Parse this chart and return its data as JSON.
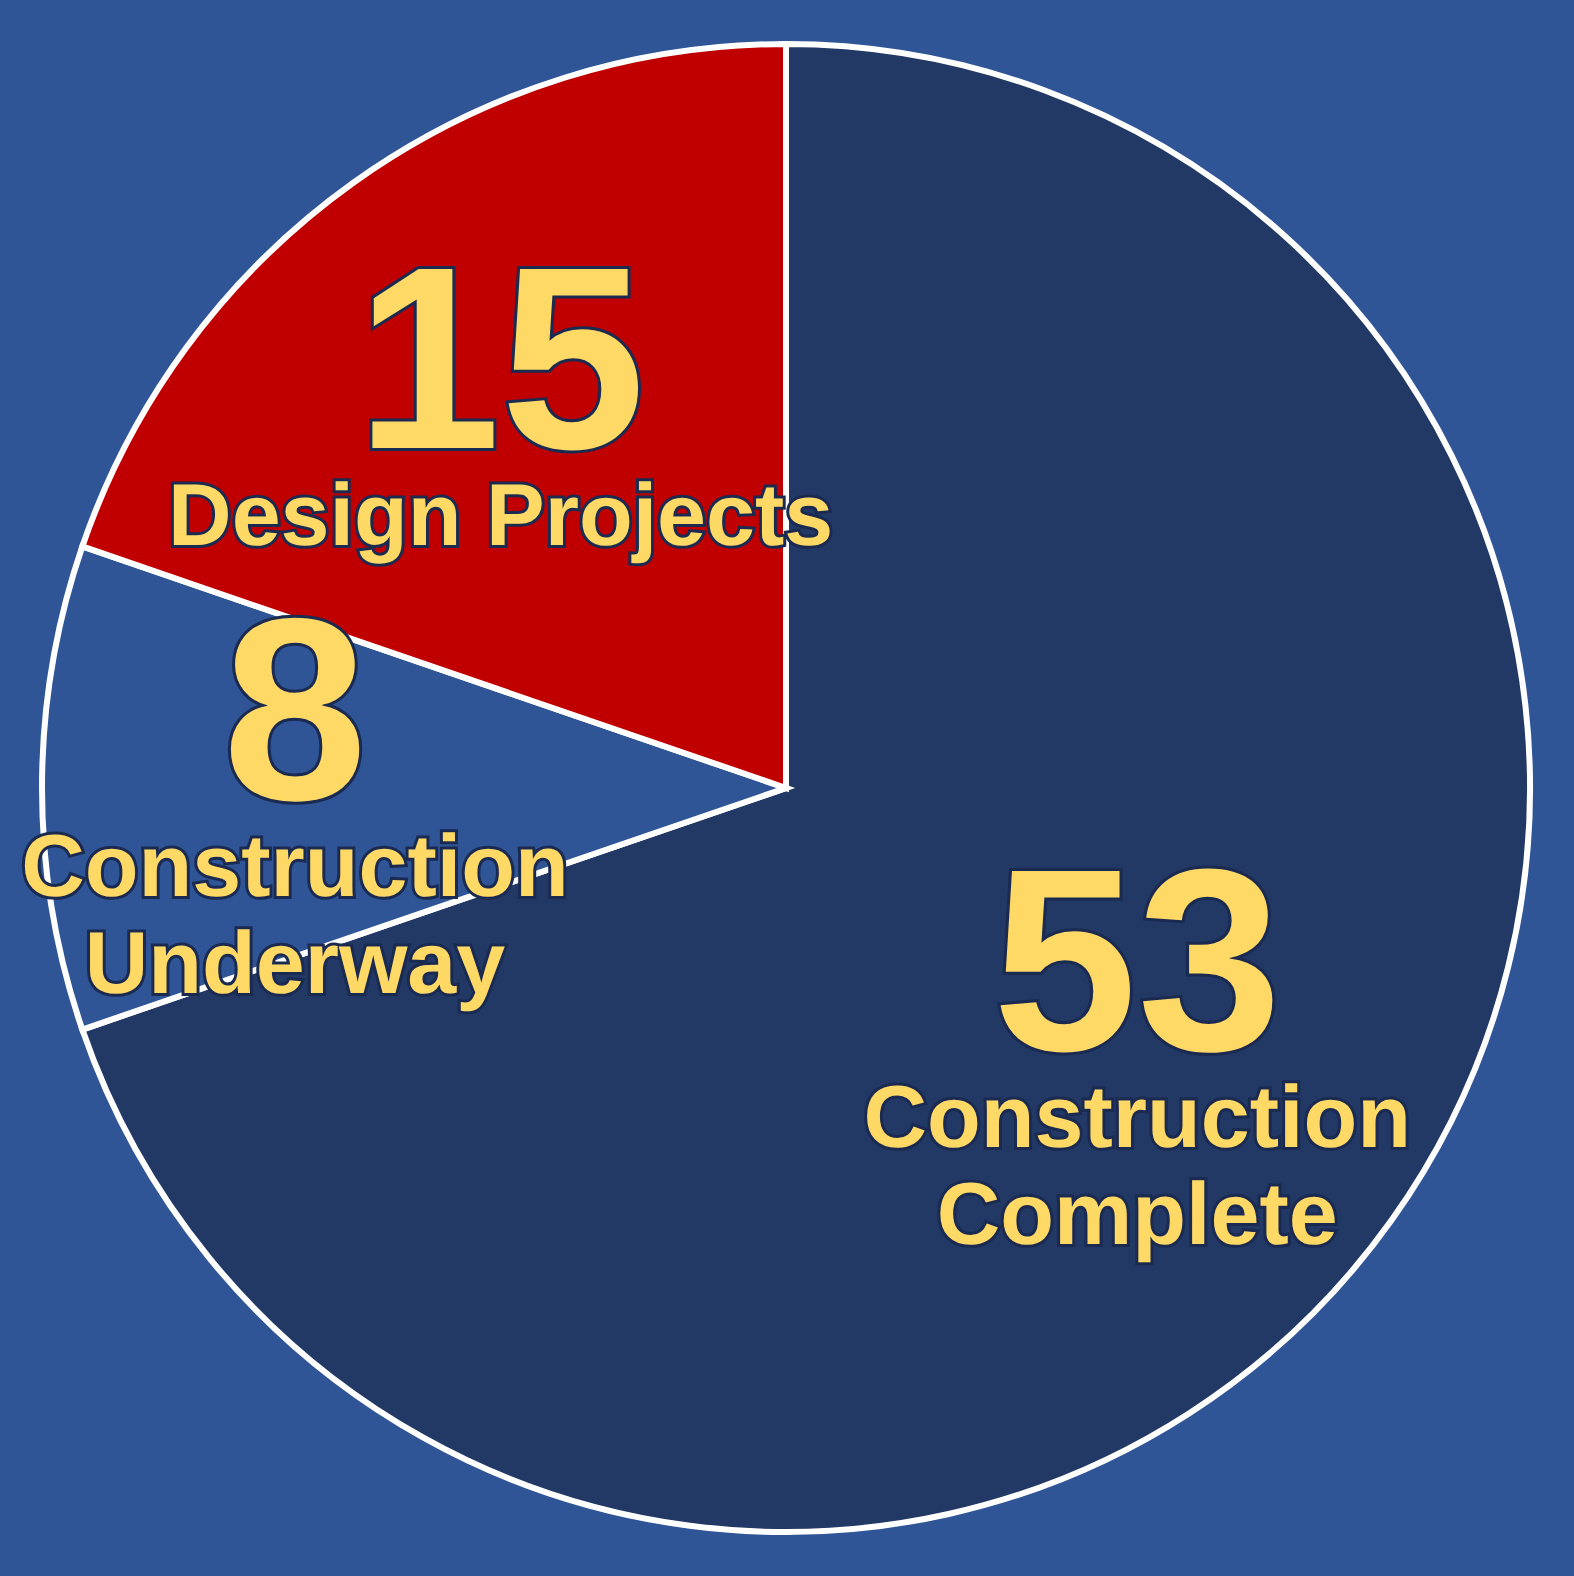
{
  "chart_data": {
    "type": "pie",
    "categories": [
      "Construction Complete",
      "Construction Underway",
      "Design Projects"
    ],
    "values": [
      53,
      8,
      15
    ],
    "colors": [
      "#223865",
      "#2f5597",
      "#c00000"
    ],
    "data_labels": true
  }
}
